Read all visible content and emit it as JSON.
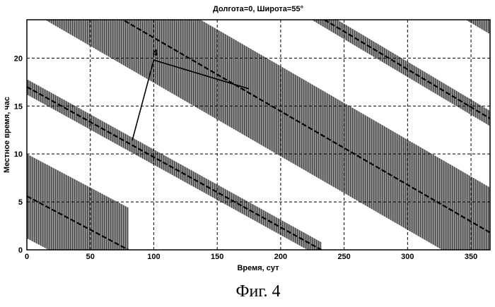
{
  "chart_data": {
    "type": "line",
    "title": "Долгота=0, Широта=55°",
    "xlabel": "Время, сут",
    "ylabel": "Местное время, час",
    "xlim": [
      0,
      365
    ],
    "ylim": [
      0,
      24
    ],
    "xticks": [
      0,
      50,
      100,
      150,
      200,
      250,
      300,
      350
    ],
    "yticks": [
      0,
      5,
      10,
      15,
      20
    ],
    "grid": true,
    "band_color": "#7a7a7a",
    "center_line_color": "#000000",
    "bands": [
      {
        "center": [
          [
            0,
            5.6
          ],
          [
            80,
            0
          ]
        ],
        "half_width_hours": 4.4
      },
      {
        "center": [
          [
            0,
            17
          ],
          [
            232,
            0
          ]
        ],
        "half_width_hours": 0.8
      },
      {
        "center": [
          [
            0,
            29.8
          ],
          [
            365,
            1.8
          ]
        ],
        "half_width_hours": 4.7
      },
      {
        "center": [
          [
            0,
            42.5
          ],
          [
            365,
            13.7
          ]
        ],
        "half_width_hours": 0.8
      },
      {
        "center": [
          [
            0,
            55.5
          ],
          [
            365,
            27
          ]
        ],
        "half_width_hours": 4.5
      }
    ],
    "annotation": {
      "label": "4",
      "anchor": [
        100,
        19.8
      ],
      "targets": [
        [
          83,
          11.4
        ],
        [
          175,
          16.8
        ]
      ]
    }
  },
  "caption": "Фиг. 4"
}
